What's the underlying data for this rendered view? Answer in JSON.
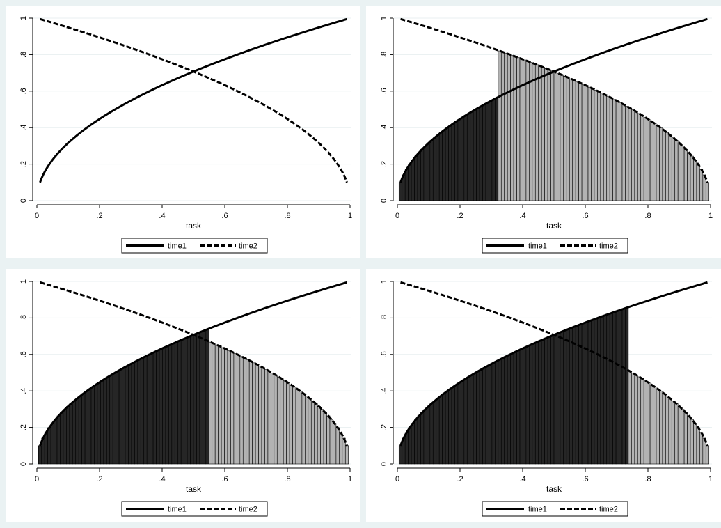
{
  "chart_data": [
    {
      "type": "area",
      "title": "",
      "xlabel": "task",
      "ylabel": "",
      "xlim": [
        0,
        1
      ],
      "ylim": [
        0,
        1
      ],
      "x_ticks": [
        "0",
        ".2",
        ".4",
        ".6",
        ".8",
        "1"
      ],
      "y_ticks": [
        "0",
        ".2",
        ".4",
        ".6",
        ".8",
        "1"
      ],
      "x_range": [
        0.01,
        0.99
      ],
      "series": [
        {
          "name": "time1",
          "style": "solid",
          "color": "#000000",
          "formula": "sqrt(x)",
          "y_at_endpoints": [
            0.1,
            0.995
          ]
        },
        {
          "name": "time2",
          "style": "dashed",
          "color": "#000000",
          "formula": "sqrt(1-x)",
          "y_at_endpoints": [
            0.995,
            0.1
          ]
        }
      ],
      "shaded_regions": [],
      "legend": "bottom"
    },
    {
      "type": "area",
      "title": "",
      "xlabel": "task",
      "ylabel": "",
      "xlim": [
        0,
        1
      ],
      "ylim": [
        0,
        1
      ],
      "x_ticks": [
        "0",
        ".2",
        ".4",
        ".6",
        ".8",
        "1"
      ],
      "y_ticks": [
        "0",
        ".2",
        ".4",
        ".6",
        ".8",
        "1"
      ],
      "x_range": [
        0.01,
        0.99
      ],
      "series": [
        {
          "name": "time1",
          "style": "solid",
          "color": "#000000",
          "formula": "sqrt(x)"
        },
        {
          "name": "time2",
          "style": "dashed",
          "color": "#000000",
          "formula": "sqrt(1-x)"
        }
      ],
      "split_x": 0.325,
      "shaded_regions": [
        {
          "x_range": [
            0.01,
            0.325
          ],
          "under": "time1",
          "color": "#262626"
        },
        {
          "x_range": [
            0.325,
            0.99
          ],
          "under": "time2",
          "color": "#b3b3b3"
        }
      ],
      "legend": "bottom"
    },
    {
      "type": "area",
      "title": "",
      "xlabel": "task",
      "ylabel": "",
      "xlim": [
        0,
        1
      ],
      "ylim": [
        0,
        1
      ],
      "x_ticks": [
        "0",
        ".2",
        ".4",
        ".6",
        ".8",
        "1"
      ],
      "y_ticks": [
        "0",
        ".2",
        ".4",
        ".6",
        ".8",
        "1"
      ],
      "x_range": [
        0.01,
        0.99
      ],
      "series": [
        {
          "name": "time1",
          "style": "solid",
          "color": "#000000",
          "formula": "sqrt(x)"
        },
        {
          "name": "time2",
          "style": "dashed",
          "color": "#000000",
          "formula": "sqrt(1-x)"
        }
      ],
      "split_x": 0.55,
      "shaded_regions": [
        {
          "x_range": [
            0.01,
            0.55
          ],
          "under": "time1",
          "color": "#262626"
        },
        {
          "x_range": [
            0.55,
            0.99
          ],
          "under": "time2",
          "color": "#b3b3b3"
        }
      ],
      "legend": "bottom"
    },
    {
      "type": "area",
      "title": "",
      "xlabel": "task",
      "ylabel": "",
      "xlim": [
        0,
        1
      ],
      "ylim": [
        0,
        1
      ],
      "x_ticks": [
        "0",
        ".2",
        ".4",
        ".6",
        ".8",
        "1"
      ],
      "y_ticks": [
        "0",
        ".2",
        ".4",
        ".6",
        ".8",
        "1"
      ],
      "x_range": [
        0.01,
        0.99
      ],
      "series": [
        {
          "name": "time1",
          "style": "solid",
          "color": "#000000",
          "formula": "sqrt(x)"
        },
        {
          "name": "time2",
          "style": "dashed",
          "color": "#000000",
          "formula": "sqrt(1-x)"
        }
      ],
      "split_x": 0.74,
      "shaded_regions": [
        {
          "x_range": [
            0.01,
            0.74
          ],
          "under": "time1",
          "color": "#262626"
        },
        {
          "x_range": [
            0.74,
            0.99
          ],
          "under": "time2",
          "color": "#b3b3b3"
        }
      ],
      "legend": "bottom"
    }
  ]
}
